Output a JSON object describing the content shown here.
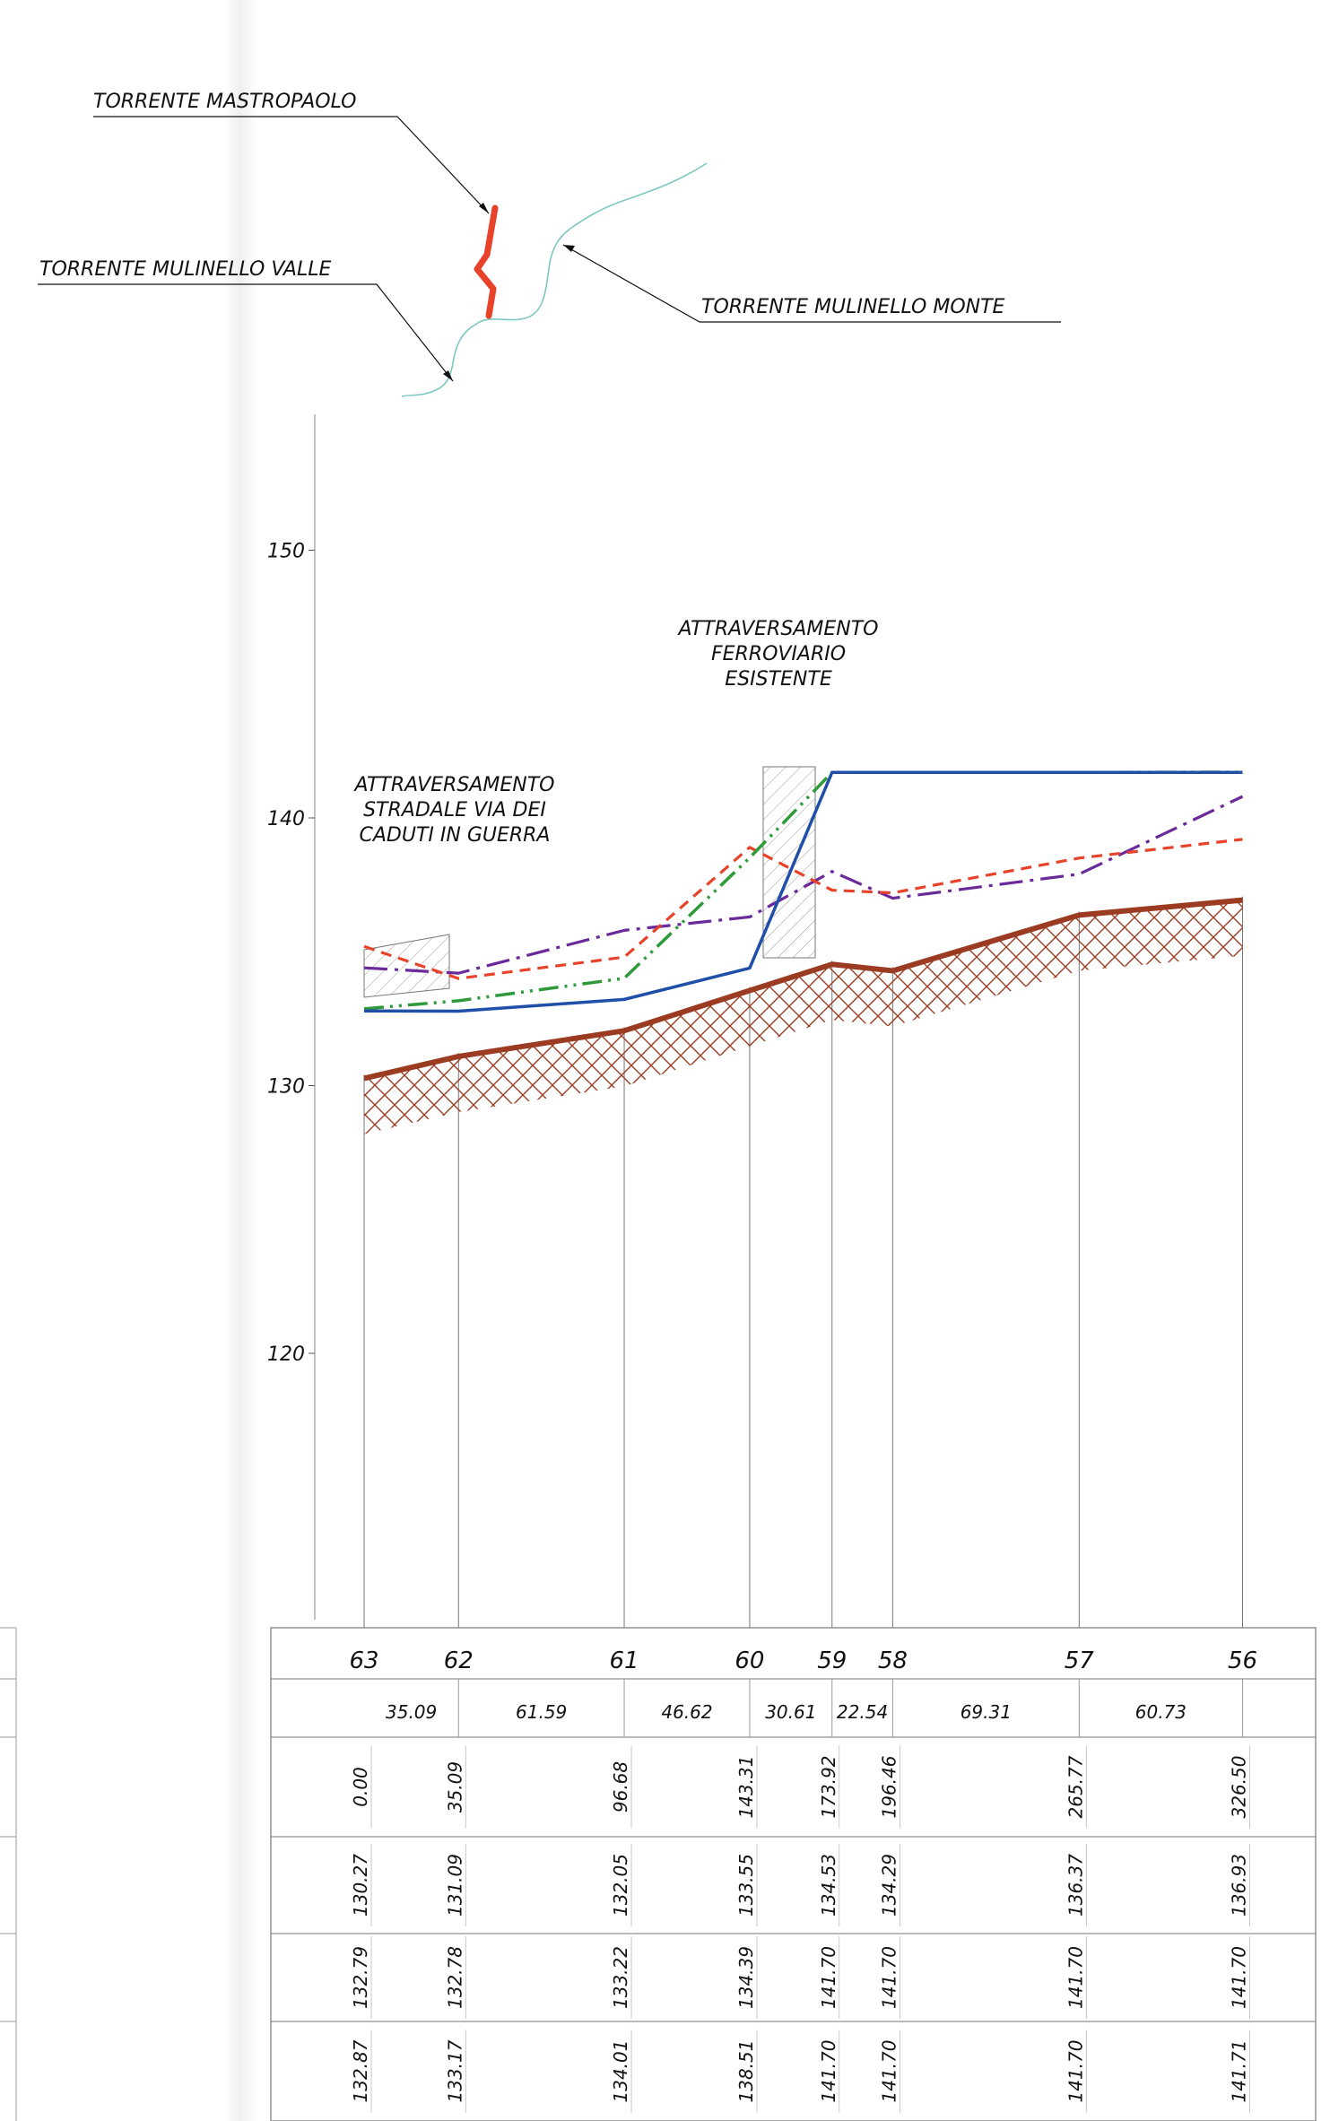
{
  "map_labels": {
    "mastropaolo": "TORRENTE MASTROPAOLO",
    "mulinello_valle": "TORRENTE MULINELLO VALLE",
    "mulinello_monte": "TORRENTE MULINELLO MONTE"
  },
  "annotations": {
    "ferroviario": [
      "ATTRAVERSAMENTO",
      "FERROVIARIO",
      "ESISTENTE"
    ],
    "stradale": [
      "ATTRAVERSAMENTO",
      "STRADALE VIA DEI",
      "CADUTI IN GUERRA"
    ]
  },
  "colors": {
    "bed": "#9a3b22",
    "blue": "#1f4fa8",
    "green": "#2e9a3a",
    "red_dash": "#e8432a",
    "purple": "#6a2a9a",
    "map_red": "#e8432a",
    "map_stream": "#7fc8c0"
  },
  "chart_data": {
    "type": "line",
    "y_ticks": [
      120,
      130,
      140,
      150
    ],
    "ylim": [
      110,
      155
    ],
    "sections": [
      "63",
      "62",
      "61",
      "60",
      "59",
      "58",
      "57",
      "56"
    ],
    "progressive": [
      "0.00",
      "35.09",
      "96.68",
      "143.31",
      "173.92",
      "196.46",
      "265.77",
      "326.50"
    ],
    "partial_distances": [
      "35.09",
      "61.59",
      "46.62",
      "30.61",
      "22.54",
      "69.31",
      "60.73"
    ],
    "bed_elevation": [
      "130.27",
      "131.09",
      "132.05",
      "133.55",
      "134.53",
      "134.29",
      "136.37",
      "136.93"
    ],
    "row_a": [
      "132.79",
      "132.78",
      "133.22",
      "134.39",
      "141.70",
      "141.70",
      "141.70",
      "141.70"
    ],
    "row_b": [
      "132.87",
      "133.17",
      "134.01",
      "138.51",
      "141.70",
      "141.70",
      "141.70",
      "141.71"
    ],
    "series": [
      {
        "values": [
          130.27,
          131.09,
          132.05,
          133.55,
          134.53,
          134.29,
          136.37,
          136.93
        ]
      },
      {
        "values": [
          132.79,
          132.78,
          133.22,
          134.39,
          141.7,
          141.7,
          141.7,
          141.7
        ]
      },
      {
        "values": [
          132.87,
          133.17,
          134.01,
          138.51,
          141.7,
          141.7,
          141.7,
          141.71
        ]
      },
      {
        "values": [
          135.2,
          134.0,
          134.8,
          138.9,
          137.3,
          137.2,
          138.5,
          139.2
        ]
      },
      {
        "values": [
          134.4,
          134.2,
          135.8,
          136.3,
          138.0,
          137.0,
          137.9,
          140.8
        ]
      }
    ]
  }
}
